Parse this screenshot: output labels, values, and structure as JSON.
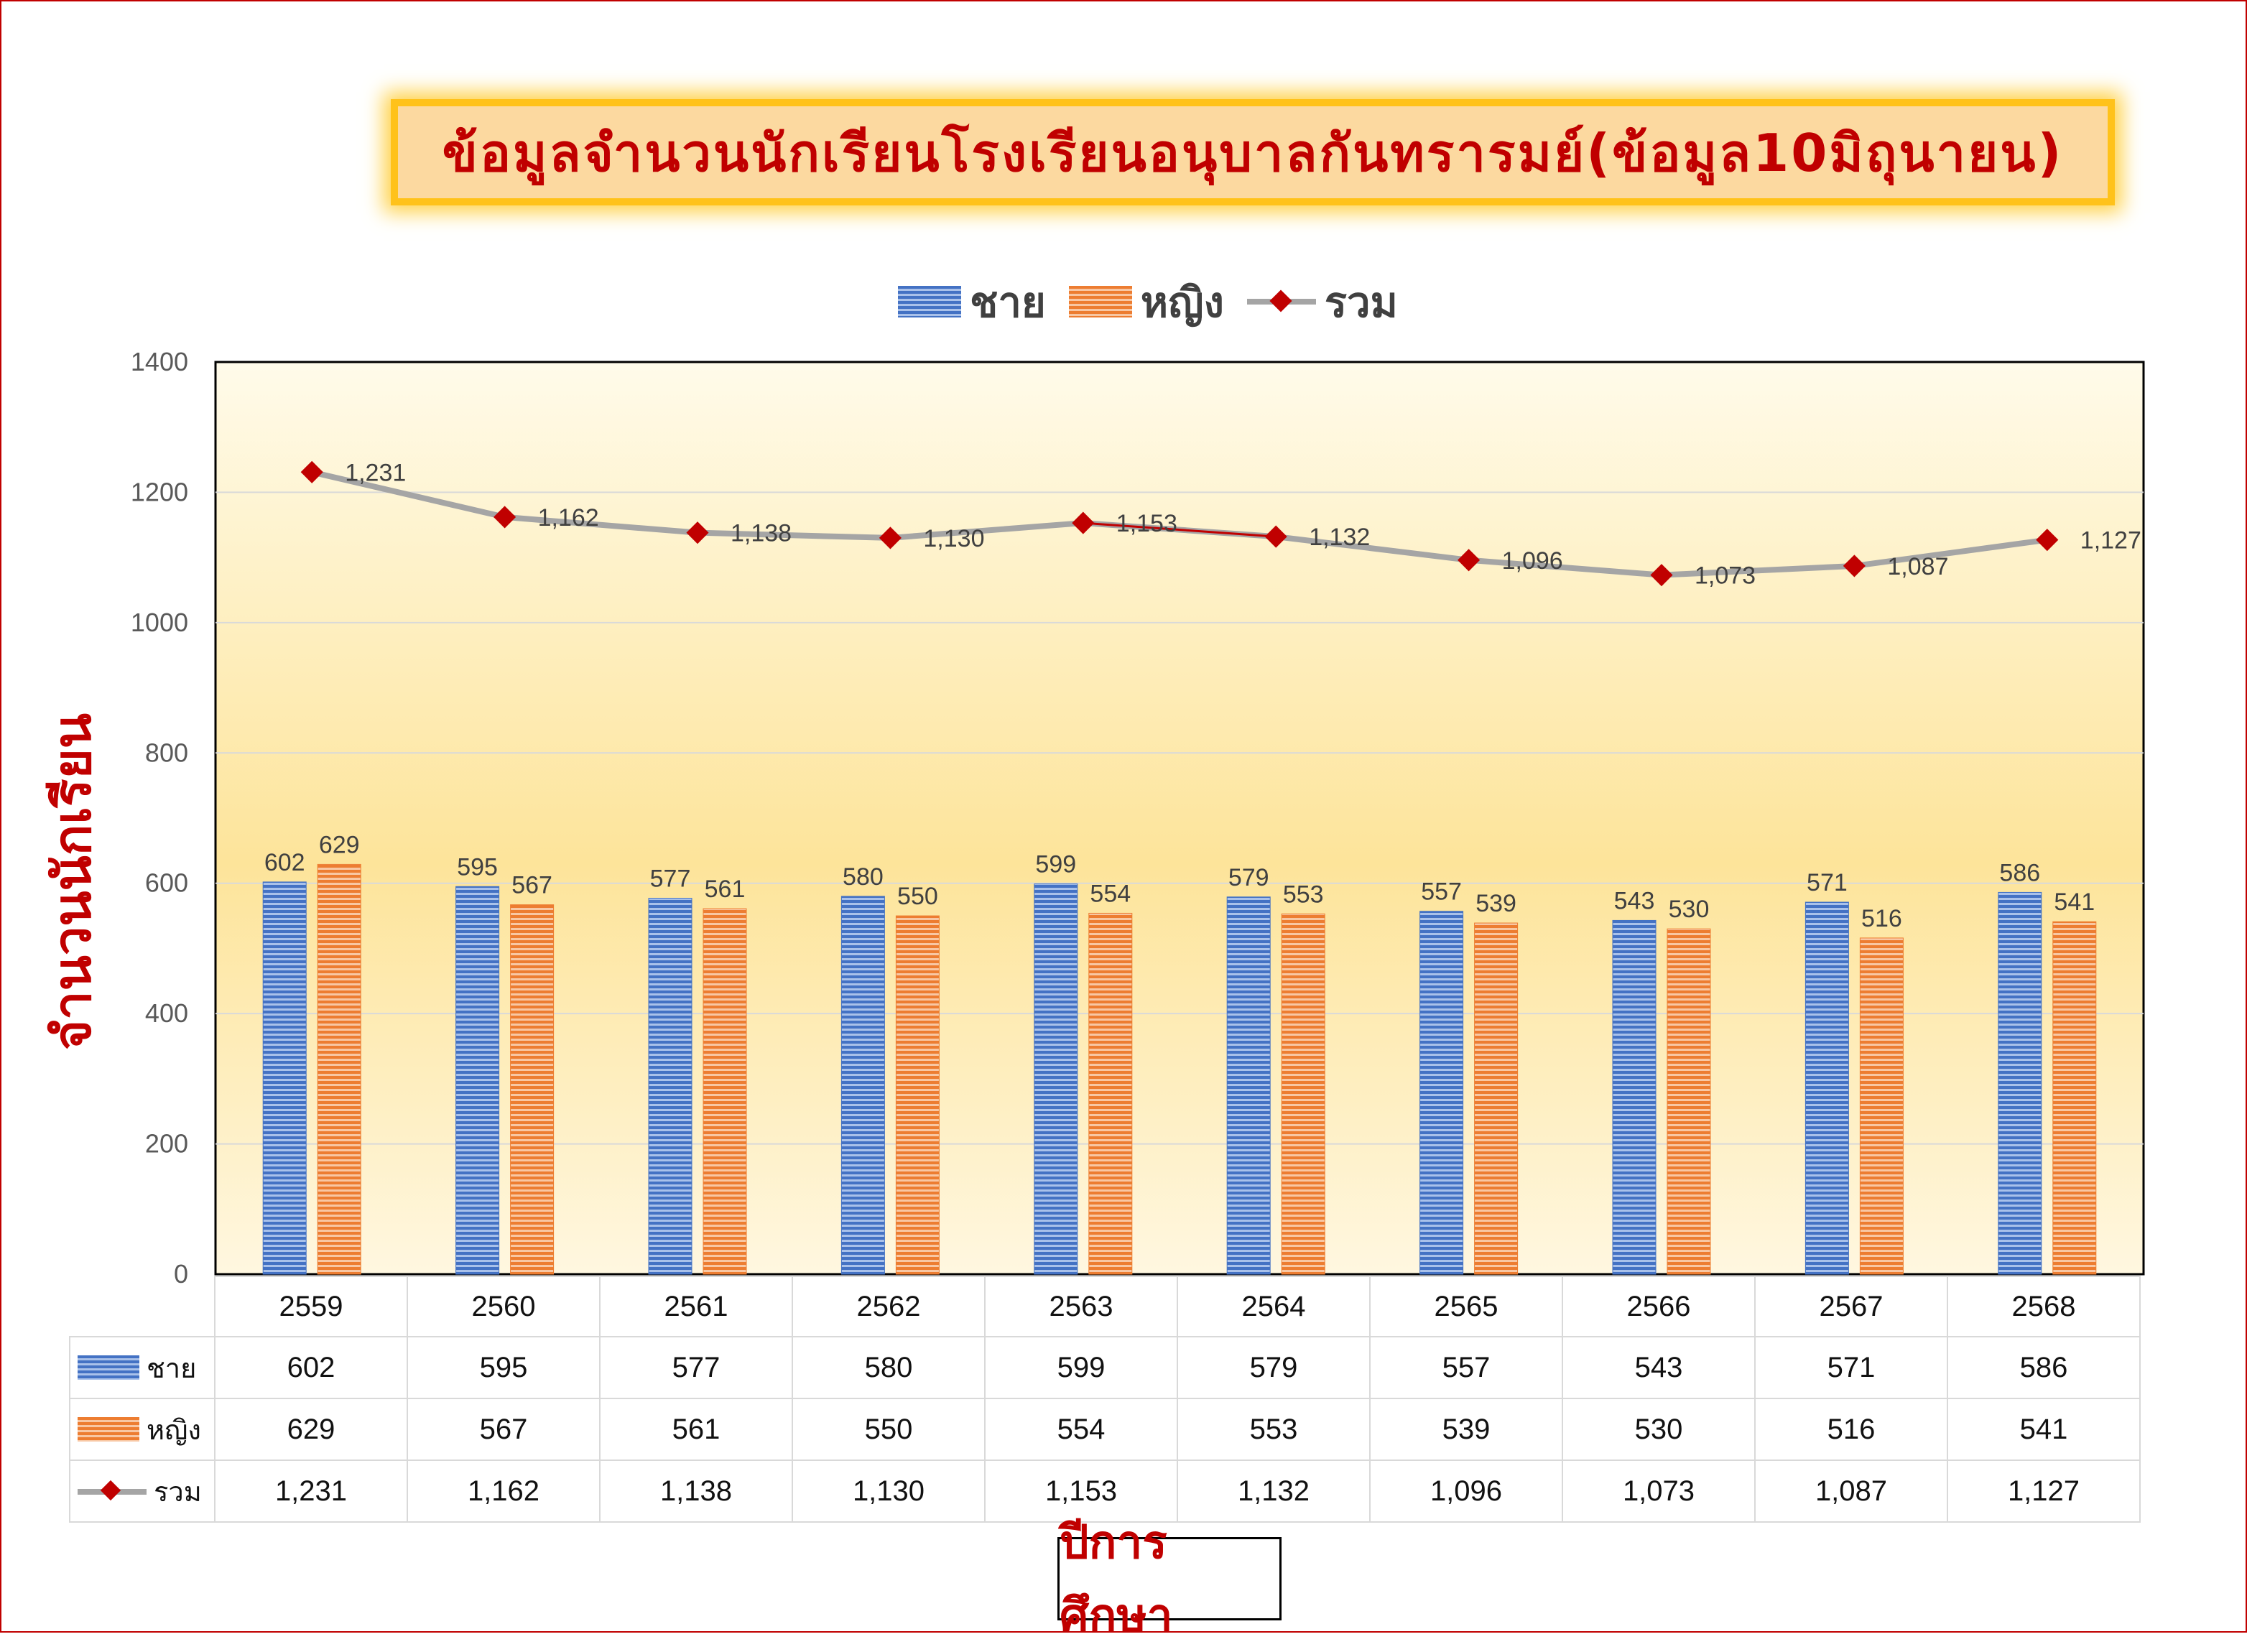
{
  "title": "ข้อมูลจำนวนนักเรียนโรงเรียนอนุบาลกันทรารมย์(ข้อมูล10มิถุนายน)",
  "legend": {
    "male": "ชาย",
    "female": "หญิง",
    "total": "รวม"
  },
  "ylabel": "จำนวนนักเรียน",
  "xlabel": "ปีการศึกษา",
  "colors": {
    "male": "#4472c4",
    "female": "#ed7d31",
    "total_line": "#a5a5a5",
    "total_marker": "#c00000",
    "title": "#c00000"
  },
  "chart_data": {
    "type": "bar",
    "categories": [
      "2559",
      "2560",
      "2561",
      "2562",
      "2563",
      "2564",
      "2565",
      "2566",
      "2567",
      "2568"
    ],
    "series": [
      {
        "name": "ชาย",
        "type": "bar",
        "values": [
          602,
          595,
          577,
          580,
          599,
          579,
          557,
          543,
          571,
          586
        ]
      },
      {
        "name": "หญิง",
        "type": "bar",
        "values": [
          629,
          567,
          561,
          550,
          554,
          553,
          539,
          530,
          516,
          541
        ]
      },
      {
        "name": "รวม",
        "type": "line",
        "values": [
          1231,
          1162,
          1138,
          1130,
          1153,
          1132,
          1096,
          1073,
          1087,
          1127
        ],
        "labels": [
          "1,231",
          "1,162",
          "1,138",
          "1,130",
          "1,153",
          "1,132",
          "1,096",
          "1,073",
          "1,087",
          "1,127"
        ]
      }
    ],
    "yticks": [
      "0",
      "200",
      "400",
      "600",
      "800",
      "1000",
      "1200",
      "1400"
    ],
    "ylim": [
      0,
      1400
    ],
    "grid": true,
    "legend_position": "top",
    "data_table": true
  }
}
